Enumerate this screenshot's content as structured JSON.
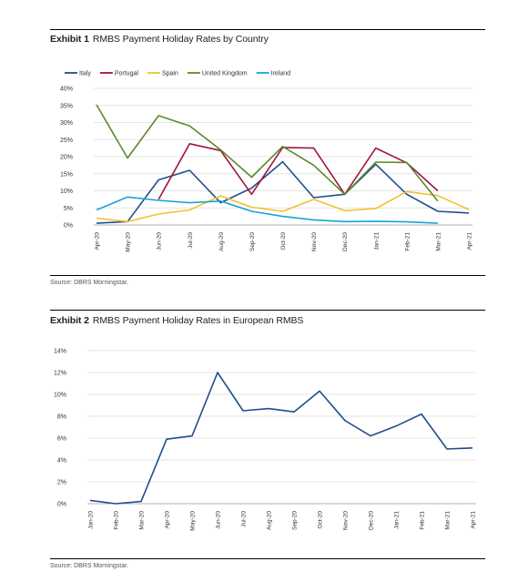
{
  "exhibit1": {
    "label": "Exhibit 1",
    "title": "RMBS Payment Holiday Rates by Country",
    "source": "Source: DBRS Morningstar."
  },
  "exhibit2": {
    "label": "Exhibit 2",
    "title": "RMBS Payment Holiday Rates in European RMBS",
    "source": "Source: DBRS Morningstar."
  },
  "chart_data": [
    {
      "type": "line",
      "title": "RMBS Payment Holiday Rates by Country",
      "xlabel": "",
      "ylabel": "",
      "ylim": [
        0,
        40
      ],
      "y_ticks": [
        "0%",
        "5%",
        "10%",
        "15%",
        "20%",
        "25%",
        "30%",
        "35%",
        "40%"
      ],
      "grid": true,
      "legend": "top",
      "categories": [
        "Apr-20",
        "May-20",
        "Jun-20",
        "Jul-20",
        "Aug-20",
        "Sep-20",
        "Oct-20",
        "Nov-20",
        "Dec-20",
        "Jan-21",
        "Feb-21",
        "Mar-21",
        "Apr-21"
      ],
      "series": [
        {
          "name": "Italy",
          "color": "#1f4e8c",
          "values": [
            0.5,
            1,
            13.2,
            16,
            6.5,
            10.8,
            18.5,
            8,
            9,
            17.8,
            9,
            4,
            3.5
          ]
        },
        {
          "name": "Portugal",
          "color": "#a0153e",
          "values": [
            null,
            null,
            7.5,
            23.8,
            21.8,
            9,
            22.7,
            22.5,
            9,
            22.5,
            18.2,
            10,
            null
          ]
        },
        {
          "name": "Spain",
          "color": "#f2c12e",
          "values": [
            2,
            1,
            3.2,
            4.4,
            8.5,
            5.2,
            4,
            7.5,
            4.2,
            4.8,
            9.8,
            8.6,
            4.5
          ]
        },
        {
          "name": "United Kingdom",
          "color": "#5a8a2b",
          "values": [
            35.2,
            19.6,
            32,
            29,
            22,
            14,
            23,
            17.5,
            9,
            18.4,
            18.3,
            7,
            null
          ]
        },
        {
          "name": "Ireland",
          "color": "#19a3d6",
          "values": [
            4.4,
            8.2,
            7.2,
            6.5,
            7,
            4,
            2.5,
            1.5,
            1,
            1.1,
            0.9,
            0.5,
            null
          ]
        }
      ]
    },
    {
      "type": "line",
      "title": "RMBS Payment Holiday Rates in European RMBS",
      "xlabel": "",
      "ylabel": "",
      "ylim": [
        0,
        14
      ],
      "y_ticks": [
        "0%",
        "2%",
        "4%",
        "6%",
        "8%",
        "10%",
        "12%",
        "14%"
      ],
      "grid": true,
      "categories": [
        "Jan-20",
        "Feb-20",
        "Mar-20",
        "Apr-20",
        "May-20",
        "Jun-20",
        "Jul-20",
        "Aug-20",
        "Sep-20",
        "Oct-20",
        "Nov-20",
        "Dec-20",
        "Jan-21",
        "Feb-21",
        "Mar-21",
        "Apr-21"
      ],
      "series": [
        {
          "color": "#1f4e8c",
          "values": [
            0.3,
            0,
            0.2,
            5.9,
            6.2,
            12,
            8.5,
            8.7,
            8.4,
            10.3,
            7.6,
            6.2,
            7.1,
            8.2,
            5,
            5.1
          ]
        }
      ]
    }
  ]
}
